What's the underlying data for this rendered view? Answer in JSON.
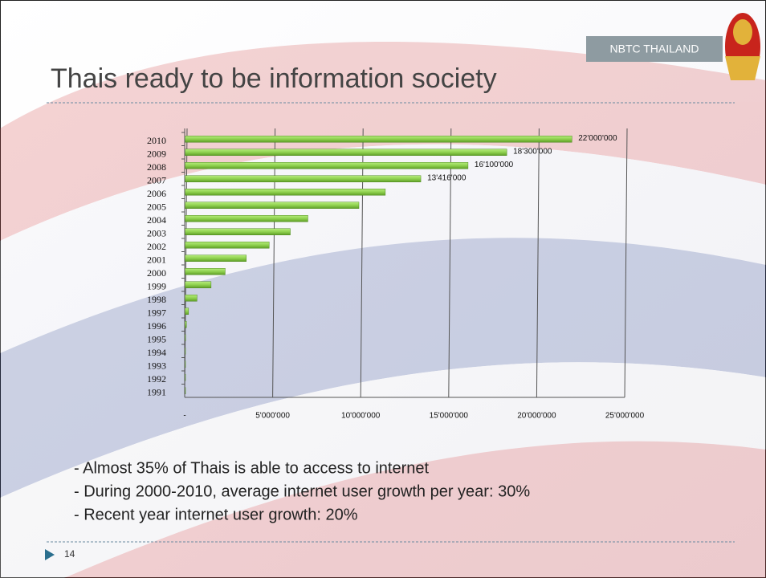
{
  "header": {
    "badge": "NBTC THAILAND",
    "title": "Thais ready to be information society"
  },
  "chart_data": {
    "type": "hbar",
    "categories": [
      "2010",
      "2009",
      "2008",
      "2007",
      "2006",
      "2005",
      "2004",
      "2003",
      "2002",
      "2001",
      "2000",
      "1999",
      "1998",
      "1997",
      "1996",
      "1995",
      "1994",
      "1993",
      "1992",
      "1991"
    ],
    "values": [
      22000000,
      18300000,
      16100000,
      13416000,
      11400000,
      9900000,
      7000000,
      6000000,
      4800000,
      3500000,
      2300000,
      1500000,
      700000,
      220000,
      100000,
      50000,
      45000,
      30000,
      20000,
      10000
    ],
    "value_labels": [
      "22'000'000",
      "18'300'000",
      "16'100'000",
      "13'416'000",
      null,
      null,
      null,
      null,
      null,
      null,
      null,
      null,
      null,
      null,
      null,
      null,
      null,
      null,
      null,
      null
    ],
    "color": "#8fd14f",
    "xlim": [
      0,
      25000000
    ],
    "xticks": [
      {
        "value": 0,
        "label": "-"
      },
      {
        "value": 5000000,
        "label": "5'000'000"
      },
      {
        "value": 10000000,
        "label": "10'000'000"
      },
      {
        "value": 15000000,
        "label": "15'000'000"
      },
      {
        "value": 20000000,
        "label": "20'000'000"
      },
      {
        "value": 25000000,
        "label": "25'000'000"
      }
    ],
    "grid": true
  },
  "bullets": [
    "- Almost 35% of Thais is able to access to internet",
    "- During 2000-2010, average internet user growth per year: 30%",
    "- Recent year internet user growth: 20%"
  ],
  "footer": {
    "page": "14"
  }
}
